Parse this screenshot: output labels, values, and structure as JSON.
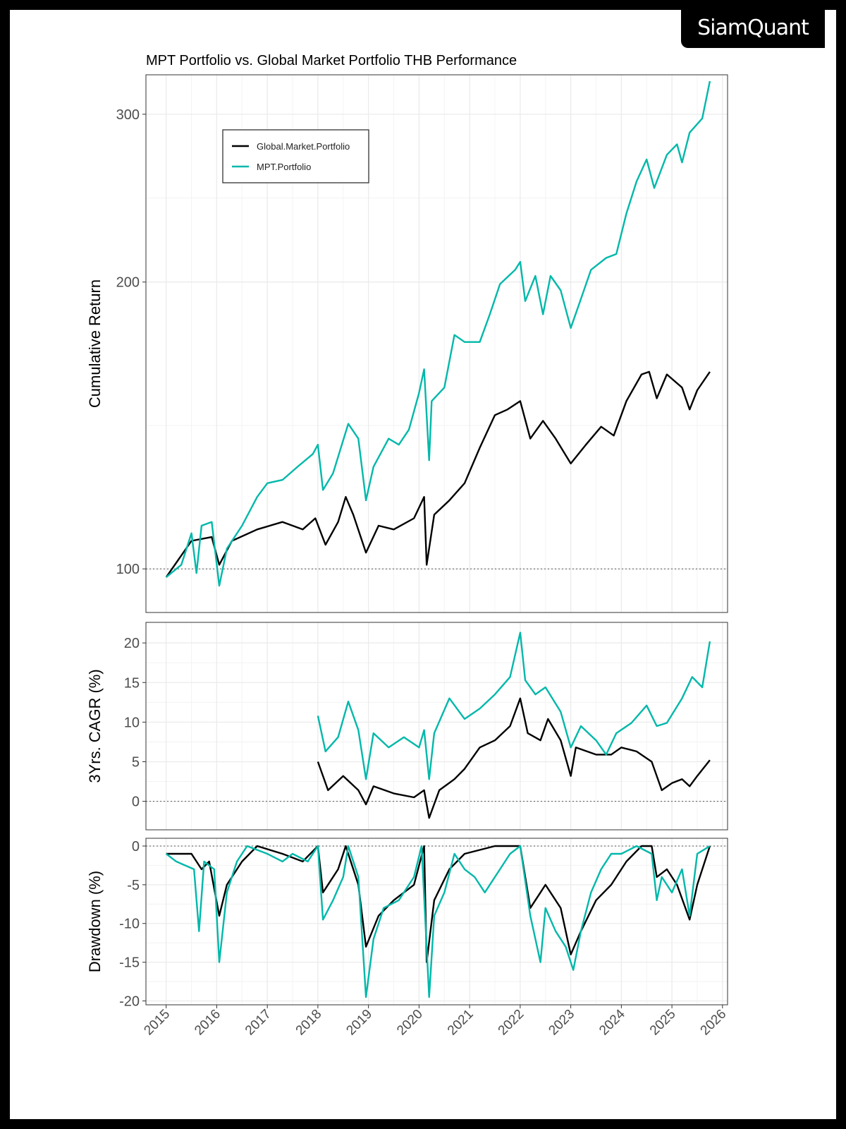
{
  "logo": "SiamQuant",
  "colors": {
    "Global.Market.Portfolio": "#000000",
    "MPT.Portfolio": "#00B8AA"
  },
  "chart_data": [
    {
      "type": "line",
      "title": "MPT Portfolio vs. Global Market Portfolio THB Performance",
      "ylabel": "Cumulative Return",
      "yscale": "log",
      "yticks": [
        100,
        200,
        300
      ],
      "ylim": [
        90,
        330
      ],
      "xlim": [
        2014.6,
        2026.1
      ],
      "reference_line": 100,
      "grid": true,
      "legend": {
        "placement": "top-left",
        "entries": [
          "Global.Market.Portfolio",
          "MPT.Portfolio"
        ]
      },
      "series": [
        {
          "name": "Global.Market.Portfolio",
          "x": [
            2015.0,
            2015.5,
            2015.9,
            2016.05,
            2016.3,
            2016.8,
            2017.3,
            2017.7,
            2017.95,
            2018.15,
            2018.4,
            2018.55,
            2018.7,
            2018.95,
            2019.2,
            2019.5,
            2019.9,
            2020.1,
            2020.15,
            2020.3,
            2020.6,
            2020.9,
            2021.2,
            2021.5,
            2021.75,
            2022.0,
            2022.2,
            2022.45,
            2022.7,
            2023.0,
            2023.3,
            2023.6,
            2023.85,
            2024.1,
            2024.4,
            2024.55,
            2024.7,
            2024.9,
            2025.2,
            2025.35,
            2025.5,
            2025.75
          ],
          "y": [
            98,
            107,
            108,
            101,
            107,
            110,
            112,
            110,
            113,
            106,
            112,
            119,
            114,
            104,
            111,
            110,
            113,
            119,
            101,
            114,
            118,
            123,
            134,
            145,
            147,
            150,
            137,
            143,
            137,
            129,
            135,
            141,
            138,
            150,
            160,
            161,
            151,
            160,
            155,
            147,
            154,
            161
          ]
        },
        {
          "name": "MPT.Portfolio",
          "x": [
            2015.0,
            2015.3,
            2015.5,
            2015.6,
            2015.7,
            2015.9,
            2016.05,
            2016.2,
            2016.5,
            2016.8,
            2017.0,
            2017.3,
            2017.6,
            2017.9,
            2018.0,
            2018.1,
            2018.3,
            2018.6,
            2018.8,
            2018.95,
            2019.1,
            2019.4,
            2019.6,
            2019.8,
            2020.0,
            2020.1,
            2020.2,
            2020.25,
            2020.5,
            2020.7,
            2020.9,
            2021.2,
            2021.4,
            2021.6,
            2021.9,
            2022.0,
            2022.1,
            2022.3,
            2022.45,
            2022.6,
            2022.8,
            2023.0,
            2023.2,
            2023.4,
            2023.7,
            2023.9,
            2024.1,
            2024.3,
            2024.5,
            2024.65,
            2024.9,
            2025.1,
            2025.2,
            2025.35,
            2025.6,
            2025.75
          ],
          "y": [
            98,
            101,
            109,
            99,
            111,
            112,
            96,
            105,
            111,
            119,
            123,
            124,
            128,
            132,
            135,
            121,
            126,
            142,
            137,
            118,
            128,
            137,
            135,
            140,
            153,
            162,
            130,
            150,
            155,
            176,
            173,
            173,
            185,
            199,
            206,
            210,
            191,
            203,
            185,
            203,
            196,
            179,
            192,
            206,
            212,
            214,
            236,
            255,
            269,
            251,
            272,
            279,
            267,
            287,
            297,
            325
          ]
        }
      ]
    },
    {
      "type": "line",
      "ylabel": "3Yrs. CAGR (%)",
      "yticks": [
        0,
        5,
        10,
        15,
        20
      ],
      "ylim": [
        -3.6,
        22.6
      ],
      "xlim": [
        2014.6,
        2026.1
      ],
      "reference_line": 0,
      "grid": true,
      "series": [
        {
          "name": "Global.Market.Portfolio",
          "x": [
            2018.0,
            2018.2,
            2018.5,
            2018.8,
            2018.95,
            2019.1,
            2019.5,
            2019.9,
            2020.1,
            2020.2,
            2020.4,
            2020.7,
            2020.9,
            2021.2,
            2021.5,
            2021.8,
            2022.0,
            2022.15,
            2022.4,
            2022.55,
            2022.8,
            2023.0,
            2023.1,
            2023.5,
            2023.8,
            2024.0,
            2024.3,
            2024.6,
            2024.8,
            2025.0,
            2025.2,
            2025.35,
            2025.5,
            2025.75
          ],
          "y": [
            5,
            1.4,
            3.2,
            1.4,
            -0.4,
            1.9,
            1,
            0.5,
            1.4,
            -2.1,
            1.4,
            2.8,
            4.1,
            6.8,
            7.7,
            9.5,
            13,
            8.6,
            7.7,
            10.4,
            7.7,
            3.2,
            6.8,
            5.9,
            5.9,
            6.8,
            6.3,
            5,
            1.4,
            2.3,
            2.8,
            1.9,
            3.2,
            5.2
          ]
        },
        {
          "name": "MPT.Portfolio",
          "x": [
            2018.0,
            2018.15,
            2018.4,
            2018.6,
            2018.8,
            2018.95,
            2019.1,
            2019.4,
            2019.7,
            2020.0,
            2020.1,
            2020.2,
            2020.3,
            2020.6,
            2020.9,
            2021.2,
            2021.5,
            2021.8,
            2022.0,
            2022.1,
            2022.3,
            2022.5,
            2022.8,
            2023.0,
            2023.2,
            2023.5,
            2023.7,
            2023.9,
            2024.2,
            2024.5,
            2024.7,
            2024.9,
            2025.2,
            2025.4,
            2025.6,
            2025.75
          ],
          "y": [
            10.8,
            6.3,
            8.1,
            12.6,
            9,
            2.8,
            8.6,
            6.8,
            8.1,
            6.8,
            9,
            2.8,
            8.6,
            13,
            10.4,
            11.7,
            13.5,
            15.7,
            21.3,
            15.3,
            13.5,
            14.4,
            11.3,
            6.8,
            9.5,
            7.7,
            5.9,
            8.6,
            9.9,
            12.1,
            9.5,
            9.9,
            13,
            15.7,
            14.4,
            20.2
          ]
        }
      ]
    },
    {
      "type": "line",
      "ylabel": "Drawdown (%)",
      "yticks": [
        0,
        -5,
        -10,
        -15,
        -20
      ],
      "ylim": [
        -20.5,
        1
      ],
      "xlim": [
        2014.6,
        2026.1
      ],
      "xticks": [
        2015,
        2016,
        2017,
        2018,
        2019,
        2020,
        2021,
        2022,
        2023,
        2024,
        2025,
        2026
      ],
      "reference_line": 0,
      "grid": true,
      "series": [
        {
          "name": "Global.Market.Portfolio",
          "x": [
            2015.0,
            2015.5,
            2015.7,
            2015.85,
            2016.05,
            2016.2,
            2016.5,
            2016.8,
            2017.3,
            2017.7,
            2018.0,
            2018.1,
            2018.4,
            2018.55,
            2018.8,
            2018.95,
            2019.2,
            2019.5,
            2019.9,
            2020.1,
            2020.15,
            2020.3,
            2020.6,
            2020.9,
            2021.5,
            2022.0,
            2022.2,
            2022.4,
            2022.5,
            2022.8,
            2023.0,
            2023.2,
            2023.5,
            2023.8,
            2024.1,
            2024.4,
            2024.6,
            2024.7,
            2024.9,
            2025.1,
            2025.35,
            2025.5,
            2025.75
          ],
          "y": [
            -1,
            -1,
            -3,
            -2,
            -9,
            -5,
            -2,
            0,
            -1,
            -2,
            0,
            -6,
            -3,
            0,
            -5,
            -13,
            -9,
            -7,
            -5,
            0,
            -15,
            -7,
            -3,
            -1,
            0,
            0,
            -8,
            -6,
            -5,
            -8,
            -14,
            -11,
            -7,
            -5,
            -2,
            0,
            0,
            -4,
            -3,
            -5,
            -9.5,
            -5,
            0
          ]
        },
        {
          "name": "MPT.Portfolio",
          "x": [
            2015.0,
            2015.2,
            2015.55,
            2015.65,
            2015.75,
            2015.95,
            2016.05,
            2016.2,
            2016.4,
            2016.6,
            2017.0,
            2017.3,
            2017.5,
            2017.8,
            2018.0,
            2018.1,
            2018.3,
            2018.5,
            2018.6,
            2018.8,
            2018.95,
            2019.1,
            2019.3,
            2019.6,
            2019.9,
            2020.05,
            2020.2,
            2020.3,
            2020.5,
            2020.7,
            2020.9,
            2021.1,
            2021.3,
            2021.5,
            2021.8,
            2022.0,
            2022.2,
            2022.4,
            2022.5,
            2022.7,
            2022.9,
            2023.05,
            2023.2,
            2023.4,
            2023.6,
            2023.8,
            2024.0,
            2024.3,
            2024.6,
            2024.7,
            2024.8,
            2025.0,
            2025.2,
            2025.35,
            2025.5,
            2025.75
          ],
          "y": [
            -1,
            -2,
            -3,
            -11,
            -2,
            -3,
            -15,
            -6,
            -2,
            0,
            -1,
            -2,
            -1,
            -2,
            0,
            -9.5,
            -7,
            -4,
            0,
            -4,
            -19.5,
            -12,
            -8,
            -7,
            -4,
            0,
            -19.5,
            -9,
            -6,
            -1,
            -3,
            -4,
            -6,
            -4,
            -1,
            0,
            -9,
            -15,
            -8,
            -11,
            -13,
            -16,
            -11,
            -6,
            -3,
            -1,
            -1,
            0,
            -1,
            -7,
            -4,
            -6,
            -3,
            -9,
            -1,
            0
          ]
        }
      ]
    }
  ]
}
